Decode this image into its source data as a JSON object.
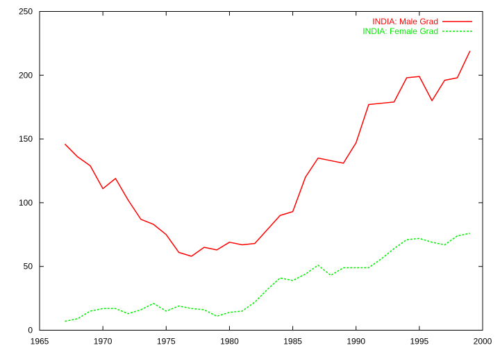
{
  "chart_data": {
    "type": "line",
    "title": "",
    "xlabel": "",
    "ylabel": "",
    "xlim": [
      1965,
      2000
    ],
    "ylim": [
      0,
      250
    ],
    "xticks": [
      1965,
      1970,
      1975,
      1980,
      1985,
      1990,
      1995,
      2000
    ],
    "yticks": [
      0,
      50,
      100,
      150,
      200,
      250
    ],
    "grid": false,
    "legend_position": "top-right",
    "x": [
      1967,
      1968,
      1969,
      1970,
      1971,
      1972,
      1973,
      1974,
      1975,
      1976,
      1977,
      1978,
      1979,
      1980,
      1981,
      1982,
      1983,
      1984,
      1985,
      1986,
      1987,
      1988,
      1989,
      1990,
      1991,
      1992,
      1993,
      1994,
      1995,
      1996,
      1997,
      1998,
      1999
    ],
    "series": [
      {
        "name": "INDIA: Male Grad",
        "color": "#ff0000",
        "dash": "solid",
        "values": [
          146,
          136,
          129,
          111,
          119,
          102,
          87,
          83,
          75,
          61,
          58,
          65,
          63,
          69,
          67,
          68,
          79,
          90,
          93,
          120,
          135,
          133,
          131,
          147,
          177,
          178,
          179,
          198,
          199,
          180,
          196,
          198,
          219
        ]
      },
      {
        "name": "INDIA: Female Grad",
        "color": "#00ee00",
        "dash": "dashed",
        "values": [
          7,
          9,
          15,
          17,
          17,
          13,
          16,
          21,
          15,
          19,
          17,
          16,
          11,
          14,
          15,
          22,
          32,
          41,
          39,
          44,
          51,
          43,
          49,
          49,
          49,
          56,
          64,
          71,
          72,
          69,
          67,
          74,
          76
        ]
      }
    ]
  }
}
